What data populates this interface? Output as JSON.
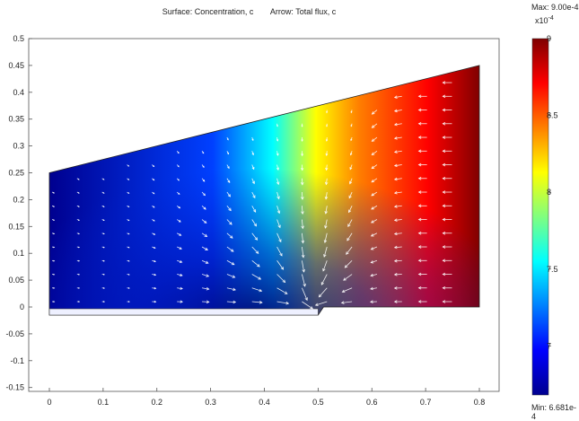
{
  "title": {
    "surface": "Surface: Concentration, c",
    "arrow": "Arrow: Total flux, c"
  },
  "colorbar": {
    "max_label": "Max: 9.00e-4",
    "min_label": "Min: 6.681e-4",
    "exponent_base": "x10",
    "exponent_power": "-4",
    "tick_labels": [
      "9",
      "8.5",
      "8",
      "7.5",
      "7"
    ],
    "tick_values": [
      9.0,
      8.5,
      8.0,
      7.5,
      7.0
    ],
    "min_value": 6.681,
    "max_value": 9.0,
    "colormap": "jet"
  },
  "chart_data": {
    "type": "heatmap",
    "x_ticks": [
      "0",
      "0.1",
      "0.2",
      "0.3",
      "0.4",
      "0.5",
      "0.6",
      "0.7",
      "0.8"
    ],
    "y_ticks": [
      "0.5",
      "0.45",
      "0.4",
      "0.35",
      "0.3",
      "0.25",
      "0.2",
      "0.15",
      "0.1",
      "0.05",
      "0",
      "-0.05",
      "-0.1",
      "-0.15"
    ],
    "xlim": [
      -0.07,
      0.87
    ],
    "ylim": [
      -0.165,
      0.505
    ],
    "domain_polygon": [
      [
        0,
        0.25
      ],
      [
        0.8,
        0.45
      ],
      [
        0.8,
        0
      ],
      [
        0.51,
        0
      ],
      [
        0.5,
        -0.015
      ],
      [
        0,
        -0.015
      ]
    ],
    "field": "concentration",
    "arrows": "total flux",
    "grid": false
  }
}
